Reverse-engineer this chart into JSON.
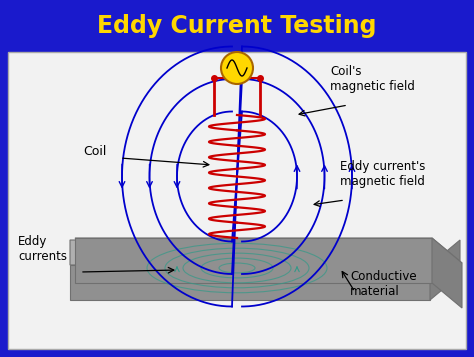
{
  "title": "Eddy Current Testing",
  "title_color": "#FFD700",
  "title_bg": "#1a1acc",
  "outer_bg": "#1a1acc",
  "panel_bg": "#f2f2f2",
  "labels": {
    "coil": "Coil",
    "coils_field": "Coil's\nmagnetic field",
    "eddy_field": "Eddy current's\nmagnetic field",
    "eddy_currents": "Eddy\ncurrents",
    "conductive": "Conductive\nmaterial"
  },
  "coil_color": "#cc0000",
  "field_color": "#0000cc",
  "eddy_ring_color": "#339988",
  "wire_color": "#cc0000",
  "source_color": "#FFD700",
  "slab_top_color": "#b0b0b0",
  "slab_front_color": "#909090",
  "slab_right_color": "#808080",
  "slab_edge": "#707070",
  "label_color": "#000000",
  "arrow_color": "#000000"
}
